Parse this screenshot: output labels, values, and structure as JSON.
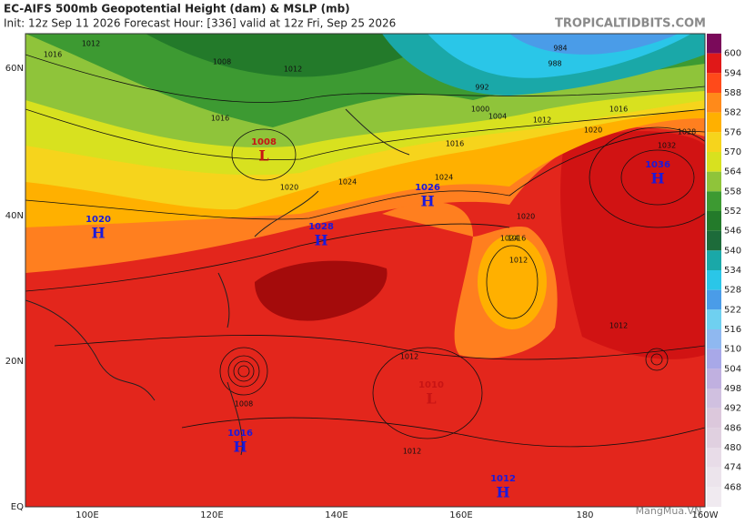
{
  "header": {
    "title": "EC-AIFS 500mb Geopotential Height (dam) & MSLP (mb)",
    "subtitle": "Init: 12z Sep 11 2026   Forecast Hour: [336]   valid at 12z Fri, Sep 25 2026",
    "source": "TROPICALTIDBITS.COM"
  },
  "axes": {
    "lat_labels": [
      "60N",
      "40N",
      "20N",
      "EQ"
    ],
    "lon_labels": [
      "100E",
      "120E",
      "140E",
      "160E",
      "180",
      "160W"
    ]
  },
  "colorbar": [
    "600",
    "594",
    "588",
    "582",
    "576",
    "570",
    "564",
    "558",
    "552",
    "546",
    "540",
    "534",
    "528",
    "522",
    "516",
    "510",
    "504",
    "498",
    "492",
    "486",
    "480",
    "474",
    "468"
  ],
  "pressure_centers": [
    {
      "symbol": "L",
      "value": "1008"
    },
    {
      "symbol": "H",
      "value": "1026"
    },
    {
      "symbol": "H",
      "value": "1028"
    },
    {
      "symbol": "H",
      "value": "1036"
    },
    {
      "symbol": "H",
      "value": "1020"
    },
    {
      "symbol": "H",
      "value": "1016"
    },
    {
      "symbol": "H",
      "value": "1012"
    },
    {
      "symbol": "L",
      "value": "1010"
    }
  ],
  "contour_labels": [
    "1012",
    "1016",
    "1008",
    "1012",
    "1016",
    "1020",
    "1024",
    "1024",
    "1020",
    "1016",
    "1012",
    "1012",
    "1016",
    "1020",
    "1024",
    "1028",
    "1032",
    "984",
    "988",
    "992",
    "1000",
    "1004",
    "1012",
    "1016",
    "1012",
    "1008",
    "1012"
  ],
  "watermark": "MangMua.VN"
}
